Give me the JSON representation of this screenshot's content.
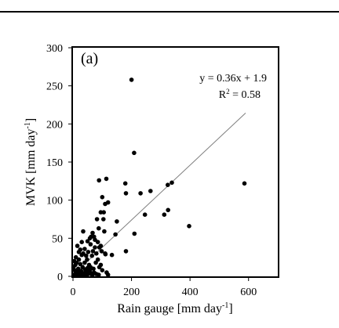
{
  "chart_data": {
    "type": "scatter",
    "panel_label": "(a)",
    "xlabel": {
      "main": "Rain gauge [mm day",
      "sup": "-1",
      "tail": "]"
    },
    "ylabel": {
      "main": "MVK [mm day",
      "sup": "-1",
      "tail": "]"
    },
    "xlim": [
      0,
      700
    ],
    "ylim": [
      0,
      300
    ],
    "xticks": [
      0,
      200,
      400,
      600
    ],
    "yticks": [
      0,
      50,
      100,
      150,
      200,
      250,
      300
    ],
    "grid": false,
    "equation": "y = 0.36x + 1.9",
    "r2": {
      "label": "R",
      "sup": "2",
      "tail": " = 0.58"
    },
    "fit_line": {
      "slope": 0.36,
      "intercept": 1.9,
      "x_range": [
        0,
        590
      ]
    },
    "colors": {
      "points": "#000000",
      "fit_line": "#7f7f7f"
    },
    "points": [
      [
        200,
        258
      ],
      [
        209,
        162
      ],
      [
        586,
        122
      ],
      [
        338,
        123
      ],
      [
        324,
        120
      ],
      [
        265,
        112
      ],
      [
        231,
        109
      ],
      [
        246,
        81
      ],
      [
        312,
        81
      ],
      [
        325,
        87
      ],
      [
        397,
        66
      ],
      [
        210,
        56
      ],
      [
        181,
        33
      ],
      [
        179,
        122
      ],
      [
        181,
        109
      ],
      [
        114,
        128
      ],
      [
        89,
        126
      ],
      [
        120,
        97
      ],
      [
        110,
        95
      ],
      [
        100,
        104
      ],
      [
        95,
        84
      ],
      [
        105,
        84
      ],
      [
        82,
        75
      ],
      [
        88,
        63
      ],
      [
        104,
        75
      ],
      [
        107,
        59
      ],
      [
        150,
        72
      ],
      [
        145,
        55
      ],
      [
        133,
        28
      ],
      [
        111,
        29
      ],
      [
        90,
        38
      ],
      [
        95,
        40
      ],
      [
        35,
        59
      ],
      [
        62,
        52
      ],
      [
        67,
        57
      ],
      [
        72,
        52
      ],
      [
        75,
        48
      ],
      [
        58,
        50
      ],
      [
        52,
        32
      ],
      [
        68,
        33
      ],
      [
        80,
        30
      ],
      [
        48,
        22
      ],
      [
        85,
        22
      ],
      [
        15,
        40
      ],
      [
        25,
        35
      ],
      [
        30,
        28
      ],
      [
        10,
        25
      ],
      [
        20,
        22
      ],
      [
        40,
        18
      ],
      [
        55,
        15
      ],
      [
        60,
        12
      ],
      [
        70,
        10
      ],
      [
        78,
        18
      ],
      [
        90,
        12
      ],
      [
        100,
        8
      ],
      [
        115,
        5
      ],
      [
        120,
        2
      ],
      [
        88,
        2
      ],
      [
        5,
        8
      ],
      [
        8,
        15
      ],
      [
        12,
        5
      ],
      [
        18,
        10
      ],
      [
        22,
        3
      ],
      [
        28,
        7
      ],
      [
        33,
        12
      ],
      [
        38,
        4
      ],
      [
        42,
        9
      ],
      [
        47,
        6
      ],
      [
        52,
        3
      ],
      [
        57,
        8
      ],
      [
        62,
        4
      ],
      [
        66,
        1
      ],
      [
        72,
        5
      ],
      [
        80,
        3
      ],
      [
        95,
        15
      ],
      [
        3,
        2
      ],
      [
        6,
        1
      ],
      [
        9,
        4
      ],
      [
        14,
        1
      ],
      [
        17,
        6
      ],
      [
        21,
        2
      ],
      [
        26,
        1
      ],
      [
        30,
        5
      ],
      [
        36,
        2
      ],
      [
        45,
        1
      ],
      [
        50,
        11
      ],
      [
        35,
        30
      ],
      [
        40,
        36
      ],
      [
        45,
        27
      ],
      [
        25,
        16
      ],
      [
        12,
        18
      ],
      [
        2,
        12
      ],
      [
        4,
        20
      ],
      [
        65,
        27
      ],
      [
        75,
        38
      ],
      [
        60,
        42
      ],
      [
        50,
        46
      ],
      [
        30,
        45
      ],
      [
        20,
        32
      ],
      [
        110,
        30
      ],
      [
        98,
        33
      ],
      [
        85,
        45
      ]
    ]
  }
}
